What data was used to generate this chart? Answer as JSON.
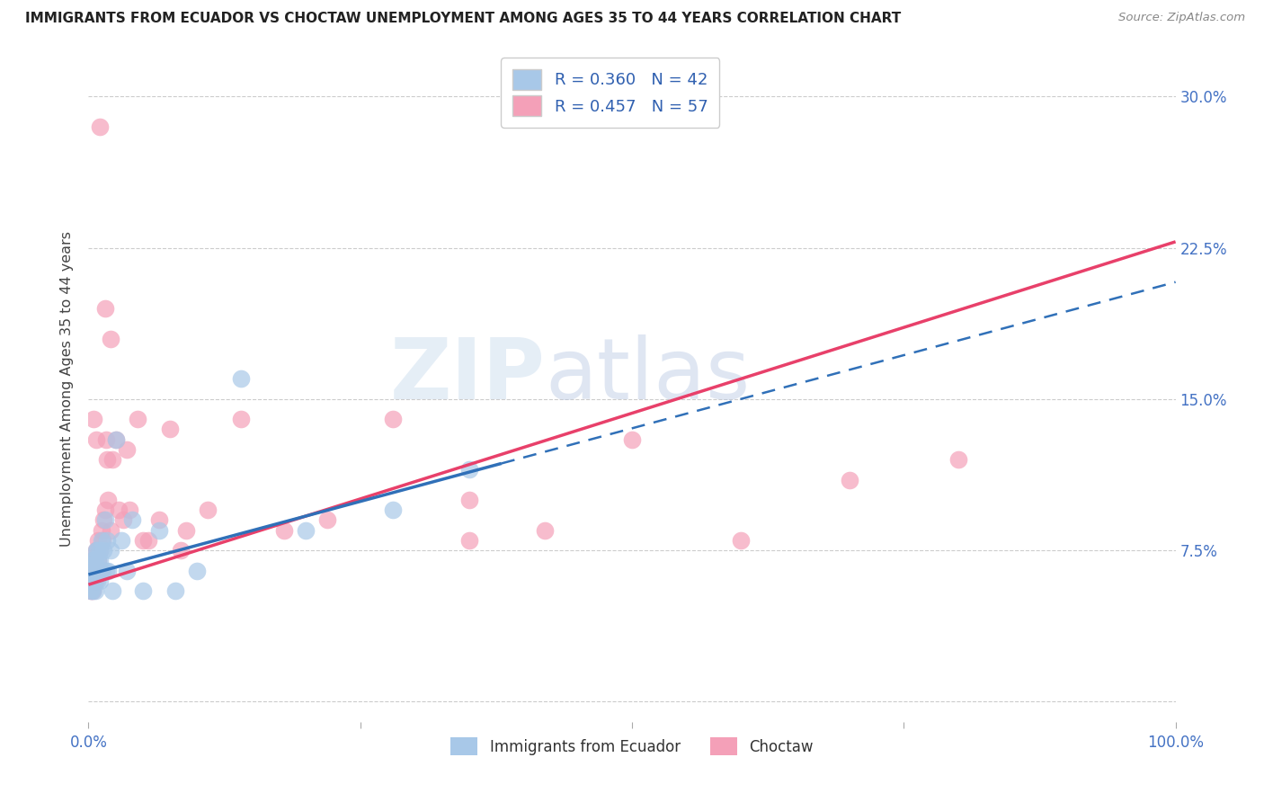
{
  "title": "IMMIGRANTS FROM ECUADOR VS CHOCTAW UNEMPLOYMENT AMONG AGES 35 TO 44 YEARS CORRELATION CHART",
  "source": "Source: ZipAtlas.com",
  "ylabel": "Unemployment Among Ages 35 to 44 years",
  "xlim": [
    0,
    1.0
  ],
  "ylim": [
    -0.01,
    0.32
  ],
  "xtick_positions": [
    0.0,
    0.25,
    0.5,
    0.75,
    1.0
  ],
  "xticklabels": [
    "0.0%",
    "",
    "",
    "",
    "100.0%"
  ],
  "ytick_positions": [
    0.0,
    0.075,
    0.15,
    0.225,
    0.3
  ],
  "yticklabels": [
    "",
    "7.5%",
    "15.0%",
    "22.5%",
    "30.0%"
  ],
  "legend_r1": "R = 0.360",
  "legend_n1": "N = 42",
  "legend_r2": "R = 0.457",
  "legend_n2": "N = 57",
  "color_blue": "#a8c8e8",
  "color_pink": "#f4a0b8",
  "line_color_blue": "#3070b8",
  "line_color_pink": "#e8406a",
  "watermark_zip": "ZIP",
  "watermark_atlas": "atlas",
  "background_color": "#ffffff",
  "grid_color": "#cccccc",
  "ecuador_x": [
    0.002,
    0.003,
    0.003,
    0.004,
    0.004,
    0.005,
    0.005,
    0.005,
    0.006,
    0.006,
    0.007,
    0.007,
    0.008,
    0.008,
    0.008,
    0.009,
    0.009,
    0.01,
    0.01,
    0.01,
    0.011,
    0.012,
    0.013,
    0.014,
    0.015,
    0.016,
    0.017,
    0.018,
    0.02,
    0.022,
    0.025,
    0.03,
    0.035,
    0.04,
    0.05,
    0.065,
    0.08,
    0.1,
    0.14,
    0.2,
    0.28,
    0.35
  ],
  "ecuador_y": [
    0.055,
    0.06,
    0.065,
    0.055,
    0.07,
    0.06,
    0.065,
    0.07,
    0.055,
    0.07,
    0.065,
    0.075,
    0.06,
    0.065,
    0.075,
    0.065,
    0.07,
    0.06,
    0.07,
    0.075,
    0.065,
    0.08,
    0.065,
    0.075,
    0.09,
    0.065,
    0.08,
    0.065,
    0.075,
    0.055,
    0.13,
    0.08,
    0.065,
    0.09,
    0.055,
    0.085,
    0.055,
    0.065,
    0.16,
    0.085,
    0.095,
    0.115
  ],
  "choctaw_x": [
    0.002,
    0.003,
    0.003,
    0.004,
    0.004,
    0.005,
    0.005,
    0.005,
    0.006,
    0.006,
    0.007,
    0.007,
    0.008,
    0.008,
    0.009,
    0.009,
    0.01,
    0.01,
    0.011,
    0.012,
    0.013,
    0.014,
    0.015,
    0.016,
    0.017,
    0.018,
    0.02,
    0.022,
    0.025,
    0.028,
    0.032,
    0.038,
    0.045,
    0.055,
    0.065,
    0.075,
    0.09,
    0.11,
    0.14,
    0.18,
    0.22,
    0.28,
    0.35,
    0.42,
    0.5,
    0.6,
    0.7,
    0.8,
    0.005,
    0.007,
    0.01,
    0.015,
    0.02,
    0.035,
    0.05,
    0.085,
    0.35
  ],
  "choctaw_y": [
    0.055,
    0.06,
    0.065,
    0.055,
    0.07,
    0.06,
    0.065,
    0.07,
    0.06,
    0.065,
    0.065,
    0.075,
    0.065,
    0.075,
    0.07,
    0.08,
    0.065,
    0.075,
    0.065,
    0.085,
    0.08,
    0.09,
    0.095,
    0.13,
    0.12,
    0.1,
    0.085,
    0.12,
    0.13,
    0.095,
    0.09,
    0.095,
    0.14,
    0.08,
    0.09,
    0.135,
    0.085,
    0.095,
    0.14,
    0.085,
    0.09,
    0.14,
    0.1,
    0.085,
    0.13,
    0.08,
    0.11,
    0.12,
    0.14,
    0.13,
    0.285,
    0.195,
    0.18,
    0.125,
    0.08,
    0.075,
    0.08
  ],
  "ecuador_line_x0": 0.0,
  "ecuador_line_x1": 1.0,
  "ecuador_line_y0": 0.063,
  "ecuador_line_y1": 0.208,
  "choctaw_line_x0": 0.0,
  "choctaw_line_x1": 1.0,
  "choctaw_line_y0": 0.058,
  "choctaw_line_y1": 0.228
}
